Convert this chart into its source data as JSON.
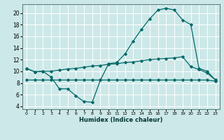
{
  "xlabel": "Humidex (Indice chaleur)",
  "bg_color": "#cde8e8",
  "grid_color": "#ffffff",
  "line_color": "#006868",
  "x_ticks": [
    0,
    1,
    2,
    3,
    4,
    5,
    6,
    7,
    8,
    9,
    10,
    11,
    12,
    13,
    14,
    15,
    16,
    17,
    18,
    19,
    20,
    21,
    22,
    23
  ],
  "y_ticks": [
    4,
    6,
    8,
    10,
    12,
    14,
    16,
    18,
    20
  ],
  "xlim": [
    -0.5,
    23.5
  ],
  "ylim": [
    3.5,
    21.5
  ],
  "line1_y": [
    10.5,
    9.9,
    10.0,
    10.0,
    10.2,
    10.4,
    10.5,
    10.7,
    10.9,
    11.0,
    11.2,
    11.3,
    11.5,
    11.6,
    11.8,
    12.0,
    12.1,
    12.2,
    12.3,
    12.5,
    10.8,
    10.3,
    9.7,
    8.5
  ],
  "line2_y": [
    10.5,
    9.9,
    10.0,
    9.0,
    7.0,
    7.0,
    5.8,
    4.8,
    4.7,
    8.5,
    11.3,
    11.5,
    13.0,
    15.2,
    17.2,
    19.0,
    20.5,
    20.8,
    20.5,
    18.8,
    18.0,
    10.5,
    10.0,
    8.5
  ],
  "line3_y": [
    8.5,
    8.5,
    8.5,
    8.5,
    8.5,
    8.5,
    8.5,
    8.5,
    8.5,
    8.5,
    8.5,
    8.5,
    8.5,
    8.5,
    8.5,
    8.5,
    8.5,
    8.5,
    8.5,
    8.5,
    8.5,
    8.5,
    8.5,
    8.3
  ]
}
